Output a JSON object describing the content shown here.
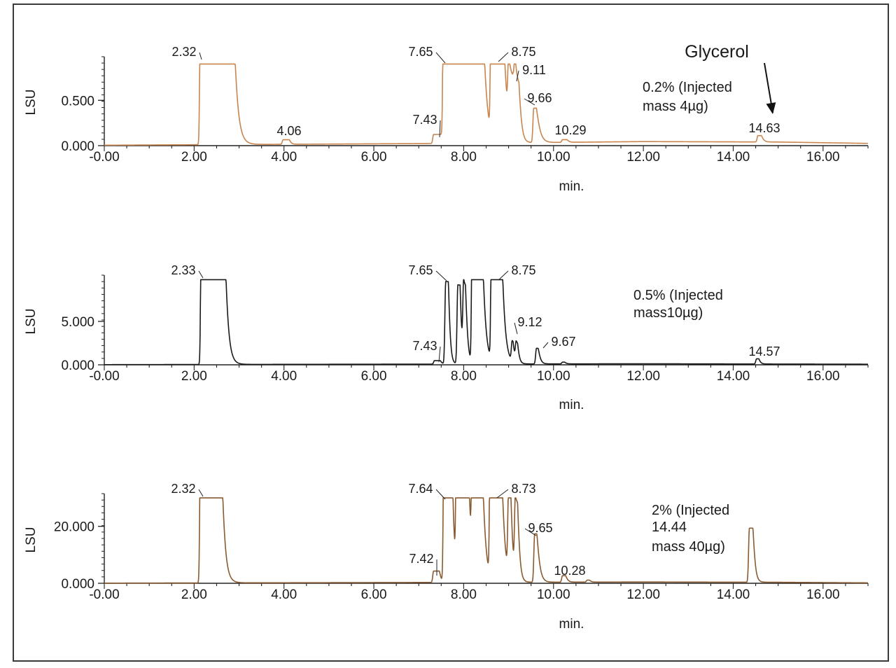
{
  "chart_data": [
    {
      "type": "line",
      "panel": "top",
      "color": "#c8854f",
      "ylabel": "LSU",
      "xlabel": "min.",
      "xlim": [
        0,
        17
      ],
      "ylim": [
        0,
        0.95
      ],
      "x_ticks": [
        "-0.00",
        "2.00",
        "4.00",
        "6.00",
        "8.00",
        "10.00",
        "12.00",
        "14.00",
        "16.00"
      ],
      "y_ticks": [
        {
          "value": 0,
          "label": "0.000"
        },
        {
          "value": 0.5,
          "label": "0.500"
        }
      ],
      "clip": 0.9,
      "baseline": 0.005,
      "drift": [
        [
          0,
          0.0
        ],
        [
          8,
          0.02
        ],
        [
          12,
          0.04
        ],
        [
          15,
          0.035
        ],
        [
          17,
          0.02
        ]
      ],
      "peaks": [
        {
          "x": 2.32,
          "label": "2.32",
          "height": 3.0,
          "start": 2.15,
          "end": 2.8,
          "tail": 0.12
        },
        {
          "x": 4.06,
          "label": "4.06",
          "height": 0.05,
          "start": 3.98,
          "end": 4.12,
          "tail": 0.05
        },
        {
          "x": 7.43,
          "label": "7.43",
          "height": 0.1,
          "start": 7.33,
          "end": 7.5,
          "tail": 0.05
        },
        {
          "x": 7.65,
          "label": "7.65",
          "height": 3.0,
          "start": 7.56,
          "end": 7.72,
          "tail": 0.08
        },
        {
          "x": 8.1,
          "label": "",
          "height": 3.0,
          "start": 7.83,
          "end": 8.05,
          "tail": 0.1
        },
        {
          "x": 8.45,
          "label": "",
          "height": 3.0,
          "start": 8.15,
          "end": 8.35,
          "tail": 0.12
        },
        {
          "x": 8.75,
          "label": "8.75",
          "height": 3.0,
          "start": 8.62,
          "end": 8.8,
          "tail": 0.12
        },
        {
          "x": 9.11,
          "label": "9.11",
          "height": 0.65,
          "start": 9.0,
          "end": 9.1,
          "tail": 0.07
        },
        {
          "x": 9.21,
          "label": "",
          "height": 0.6,
          "start": 9.14,
          "end": 9.23,
          "tail": 0.07
        },
        {
          "x": 9.66,
          "label": "9.66",
          "height": 0.38,
          "start": 9.56,
          "end": 9.62,
          "tail": 0.1
        },
        {
          "x": 10.29,
          "label": "10.29",
          "height": 0.03,
          "start": 10.2,
          "end": 10.3,
          "tail": 0.06
        },
        {
          "x": 14.63,
          "label": "14.63",
          "height": 0.07,
          "start": 14.55,
          "end": 14.63,
          "tail": 0.06
        }
      ],
      "annotations": [
        {
          "text": "Glycerol",
          "style": "big"
        },
        {
          "text": "0.2% (Injected"
        },
        {
          "text": "mass 4µg)"
        }
      ]
    },
    {
      "type": "line",
      "panel": "middle",
      "color": "#1a1a1a",
      "ylabel": "LSU",
      "xlabel": "min.",
      "xlim": [
        0,
        17
      ],
      "ylim": [
        0,
        10
      ],
      "x_ticks": [
        "-0.00",
        "2.00",
        "4.00",
        "6.00",
        "8.00",
        "10.00",
        "12.00",
        "14.00",
        "16.00"
      ],
      "y_ticks": [
        {
          "value": 0,
          "label": "0.000"
        },
        {
          "value": 5,
          "label": "5.000"
        }
      ],
      "clip": 9.8,
      "baseline": 0.02,
      "drift": [
        [
          0,
          0.0
        ],
        [
          12,
          0.1
        ],
        [
          17,
          0.05
        ]
      ],
      "peaks": [
        {
          "x": 2.33,
          "label": "2.33",
          "height": 30,
          "start": 2.17,
          "end": 2.62,
          "tail": 0.1
        },
        {
          "x": 7.43,
          "label": "7.43",
          "height": 0.4,
          "start": 7.35,
          "end": 7.48,
          "tail": 0.05
        },
        {
          "x": 7.65,
          "label": "7.65",
          "height": 9.5,
          "start": 7.6,
          "end": 7.66,
          "tail": 0.05
        },
        {
          "x": 7.93,
          "label": "",
          "height": 9.1,
          "start": 7.87,
          "end": 7.92,
          "tail": 0.05
        },
        {
          "x": 8.05,
          "label": "",
          "height": 8.8,
          "start": 8.0,
          "end": 8.04,
          "tail": 0.06
        },
        {
          "x": 8.3,
          "label": "",
          "height": 30,
          "start": 8.2,
          "end": 8.35,
          "tail": 0.1
        },
        {
          "x": 8.75,
          "label": "8.75",
          "height": 30,
          "start": 8.63,
          "end": 8.78,
          "tail": 0.1
        },
        {
          "x": 9.12,
          "label": "9.12",
          "height": 2.3,
          "start": 9.08,
          "end": 9.1,
          "tail": 0.05
        },
        {
          "x": 9.2,
          "label": "",
          "height": 2.2,
          "start": 9.17,
          "end": 9.2,
          "tail": 0.05
        },
        {
          "x": 9.67,
          "label": "9.67",
          "height": 1.8,
          "start": 9.62,
          "end": 9.66,
          "tail": 0.06
        },
        {
          "x": 10.25,
          "label": "",
          "height": 0.2,
          "start": 10.2,
          "end": 10.25,
          "tail": 0.05
        },
        {
          "x": 14.57,
          "label": "14.57",
          "height": 0.6,
          "start": 14.52,
          "end": 14.57,
          "tail": 0.05
        }
      ],
      "annotations": [
        {
          "text": "0.5% (Injected"
        },
        {
          "text": "mass10µg)"
        }
      ]
    },
    {
      "type": "line",
      "panel": "bottom",
      "color": "#8a5a30",
      "ylabel": "LSU",
      "xlabel": "min.",
      "xlim": [
        0,
        17
      ],
      "ylim": [
        0,
        30.5
      ],
      "x_ticks": [
        "-0.00",
        "2.00",
        "4.00",
        "6.00",
        "8.00",
        "10.00",
        "12.00",
        "14.00",
        "16.00"
      ],
      "y_ticks": [
        {
          "value": 0,
          "label": "0.000"
        },
        {
          "value": 20,
          "label": "20.000"
        }
      ],
      "clip": 30,
      "baseline": 0.05,
      "drift": [
        [
          0,
          0.0
        ],
        [
          12,
          0.4
        ],
        [
          15,
          0.3
        ],
        [
          17,
          0.1
        ]
      ],
      "peaks": [
        {
          "x": 2.32,
          "label": "2.32",
          "height": 90,
          "start": 2.15,
          "end": 2.55,
          "tail": 0.1
        },
        {
          "x": 7.42,
          "label": "7.42",
          "height": 4.0,
          "start": 7.33,
          "end": 7.46,
          "tail": 0.05
        },
        {
          "x": 7.64,
          "label": "7.64",
          "height": 90,
          "start": 7.57,
          "end": 7.7,
          "tail": 0.07
        },
        {
          "x": 8.1,
          "label": "",
          "height": 90,
          "start": 7.85,
          "end": 8.05,
          "tail": 0.09
        },
        {
          "x": 8.45,
          "label": "",
          "height": 90,
          "start": 8.2,
          "end": 8.35,
          "tail": 0.1
        },
        {
          "x": 8.73,
          "label": "8.73",
          "height": 90,
          "start": 8.6,
          "end": 8.78,
          "tail": 0.1
        },
        {
          "x": 9.05,
          "label": "",
          "height": 29,
          "start": 9.0,
          "end": 9.05,
          "tail": 0.06
        },
        {
          "x": 9.2,
          "label": "",
          "height": 27,
          "start": 9.15,
          "end": 9.2,
          "tail": 0.06
        },
        {
          "x": 9.65,
          "label": "9.65",
          "height": 17,
          "start": 9.58,
          "end": 9.63,
          "tail": 0.08
        },
        {
          "x": 10.28,
          "label": "10.28",
          "height": 2.3,
          "start": 10.2,
          "end": 10.27,
          "tail": 0.06
        },
        {
          "x": 10.8,
          "label": "",
          "height": 0.7,
          "start": 10.75,
          "end": 10.8,
          "tail": 0.05
        },
        {
          "x": 14.44,
          "label": "",
          "height": 19,
          "start": 14.36,
          "end": 14.44,
          "tail": 0.06
        }
      ],
      "annotations": [
        {
          "text": "2% (Injected"
        },
        {
          "text": "14.44"
        },
        {
          "text": "mass 40µg)"
        }
      ]
    }
  ]
}
